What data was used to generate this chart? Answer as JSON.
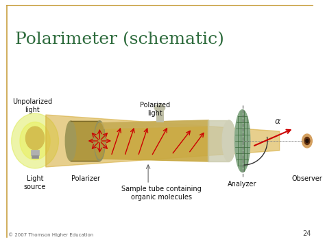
{
  "title": "Polarimeter (schematic)",
  "title_color": "#2d6b3c",
  "title_fontsize": 18,
  "bg_color": "#ffffff",
  "border_color": "#c8a040",
  "labels": {
    "unpolarized_light": "Unpolarized\nlight",
    "polarized_light": "Polarized\nlight",
    "light_source": "Light\nsource",
    "polarizer": "Polarizer",
    "sample_tube": "Sample tube containing\norganic molecules",
    "analyzer": "Analyzer",
    "observer": "Observer",
    "alpha": "α",
    "copyright": "© 2007 Thomson Higher Education",
    "page_num": "24"
  },
  "colors": {
    "beam": "#d4a830",
    "tube_outer": "#b8982a",
    "tube_inner": "#c8a840",
    "tube_cap_left": "#a09060",
    "tube_cap_right": "#c0c098",
    "polarizer_face": "#909060",
    "analyzer_face": "#7a9b7a",
    "analyzer_grid": "#4a6b4a",
    "red_arrows": "#cc0000",
    "bulb_glow1": "#d8e840",
    "bulb_glow2": "#e8f060",
    "bulb_body": "#d4c050",
    "label_color": "#111111",
    "dashed_line": "#666666",
    "flask_color": "#c0c0a8",
    "observer_color": "#c09060"
  },
  "figure_bg": "#ffffff"
}
